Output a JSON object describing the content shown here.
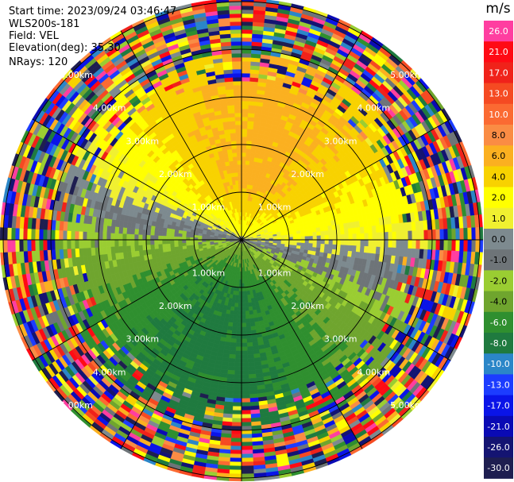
{
  "header": {
    "start_time": "Start time: 2023/09/24 03:46:47",
    "instrument": "WLS200s-181",
    "field": "Field: VEL",
    "elevation": "Elevation(deg): 35.30",
    "nrays": "NRays: 120"
  },
  "colorbar": {
    "unit": "m/s",
    "ticks": [
      "26.0",
      "21.0",
      "17.0",
      "13.0",
      "10.0",
      "8.0",
      "6.0",
      "4.0",
      "2.0",
      "1.0",
      "0.0",
      "-1.0",
      "-2.0",
      "-4.0",
      "-6.0",
      "-8.0",
      "-10.0",
      "-13.0",
      "-17.0",
      "-21.0",
      "-26.0",
      "-30.0"
    ],
    "colors": [
      "#ff3ea0",
      "#ff0a14",
      "#f0221a",
      "#f54a22",
      "#fb6a32",
      "#fa8c44",
      "#fbb020",
      "#f8d200",
      "#ffff00",
      "#f0f030",
      "#7d8a8f",
      "#6e7478",
      "#9acd32",
      "#6fa52e",
      "#2f8f2f",
      "#1f7a3f",
      "#2b86c8",
      "#1c3cff",
      "#0a14e8",
      "#0a0ab4",
      "#141472",
      "#1e1e50"
    ]
  },
  "chart_data": {
    "type": "heatmap",
    "subtype": "polar-ppi",
    "field": "VEL",
    "units": "m/s",
    "range_labels": [
      "1.00km",
      "2.00km",
      "3.00km",
      "4.00km",
      "5.00km"
    ],
    "range_rings_km": [
      1,
      2,
      3,
      4,
      5
    ],
    "max_range_km": 5,
    "grid": "polar"
  }
}
